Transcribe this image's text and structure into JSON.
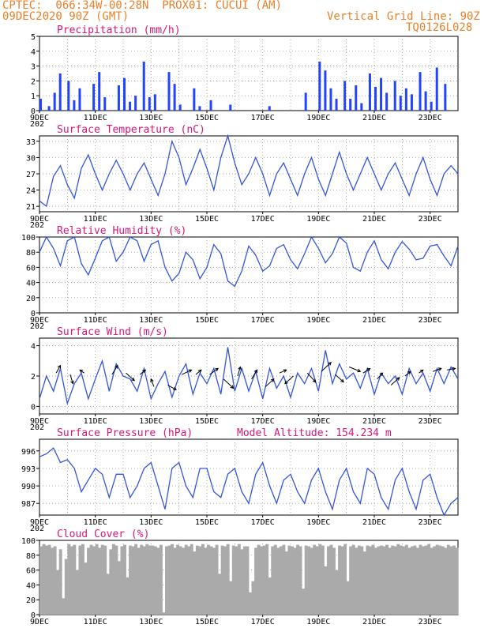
{
  "header": {
    "line1": "CPTEC:  066:34W-00:28N  PROX01: CUCUI (AM)",
    "line2_left": "09DEC2020 90Z (GMT)",
    "line2_right": "Vertical Grid Line: 90Z",
    "line3_right": "TQ0126L028"
  },
  "colors": {
    "line": "#3355dd",
    "bar": "#2244ff",
    "cloud": "#aaaaaa",
    "title": "#d6177a",
    "header": "#e8812a"
  },
  "x_ticks": [
    "9DEC",
    "11DEC",
    "13DEC",
    "15DEC",
    "17DEC",
    "19DEC",
    "21DEC",
    "23DEC"
  ],
  "year_fragment": "202",
  "chart_data": [
    {
      "type": "bar",
      "title": "Precipitation (mm/h)",
      "ylim": [
        0,
        5
      ],
      "yticks": [
        "0",
        "1",
        "2",
        "3",
        "4",
        "5"
      ],
      "x": [
        0.0,
        0.3,
        0.5,
        0.7,
        1.0,
        1.2,
        1.4,
        1.6,
        1.9,
        2.1,
        2.3,
        2.5,
        2.8,
        3.0,
        3.2,
        3.4,
        3.7,
        3.9,
        4.1,
        4.3,
        4.6,
        4.8,
        5.0,
        5.2,
        5.5,
        5.7,
        5.9,
        6.1,
        6.4,
        6.6,
        6.8,
        7.0,
        7.3,
        7.5,
        7.7,
        7.9,
        8.2,
        8.4,
        8.6,
        8.8,
        9.1,
        9.3,
        9.5,
        9.7,
        10.0,
        10.2,
        10.4,
        10.6,
        10.9,
        11.1,
        11.3,
        11.5,
        11.8,
        12.0,
        12.2,
        12.4,
        12.7,
        12.9,
        13.1,
        13.3,
        13.6,
        13.8,
        14.0,
        14.2,
        14.5
      ],
      "values": [
        0.8,
        0.3,
        1.2,
        2.5,
        2.0,
        0.7,
        1.5,
        0.0,
        1.8,
        2.6,
        0.9,
        0.0,
        1.7,
        2.2,
        0.6,
        1.0,
        3.3,
        0.9,
        1.1,
        0.0,
        2.6,
        1.8,
        0.4,
        0.0,
        1.5,
        0.3,
        0.0,
        0.7,
        0.0,
        0.0,
        0.4,
        0.0,
        0.0,
        0.0,
        0.0,
        0.0,
        0.3,
        0.0,
        0.0,
        0.0,
        0.0,
        0.0,
        1.2,
        0.0,
        3.3,
        2.7,
        1.5,
        0.8,
        2.0,
        0.8,
        1.7,
        0.5,
        2.5,
        1.6,
        2.2,
        1.2,
        2.0,
        1.0,
        1.5,
        1.1,
        2.6,
        1.3,
        0.6,
        2.9,
        1.8
      ]
    },
    {
      "type": "line",
      "title": "Surface Temperature (nC)",
      "ylim": [
        20,
        34
      ],
      "yticks": [
        "21",
        "24",
        "27",
        "30",
        "33"
      ],
      "x": [
        0.0,
        0.25,
        0.5,
        0.75,
        1.0,
        1.25,
        1.5,
        1.75,
        2.0,
        2.25,
        2.5,
        2.75,
        3.0,
        3.25,
        3.5,
        3.75,
        4.0,
        4.25,
        4.5,
        4.75,
        5.0,
        5.25,
        5.5,
        5.75,
        6.0,
        6.25,
        6.5,
        6.75,
        7.0,
        7.25,
        7.5,
        7.75,
        8.0,
        8.25,
        8.5,
        8.75,
        9.0,
        9.25,
        9.5,
        9.75,
        10.0,
        10.25,
        10.5,
        10.75,
        11.0,
        11.25,
        11.5,
        11.75,
        12.0,
        12.25,
        12.5,
        12.75,
        13.0,
        13.25,
        13.5,
        13.75,
        14.0,
        14.25,
        14.5,
        14.75,
        15.0
      ],
      "values": [
        22,
        21,
        26.5,
        28.5,
        25,
        22.5,
        28,
        30.5,
        27,
        24,
        27,
        29.5,
        27,
        24,
        27,
        29,
        26,
        23,
        27,
        33,
        30,
        25,
        28,
        31.5,
        28,
        24,
        30,
        34,
        29,
        25,
        27,
        30,
        27,
        23,
        27,
        29,
        26,
        23,
        27,
        30,
        26,
        23,
        27,
        31,
        27,
        24,
        27,
        30,
        27,
        24,
        27,
        29,
        26,
        23,
        27,
        30,
        26,
        23,
        27,
        28.5,
        27
      ]
    },
    {
      "type": "line",
      "title": "Relative Humidity (%)",
      "ylim": [
        0,
        100
      ],
      "yticks": [
        "0",
        "20",
        "40",
        "60",
        "80",
        "100"
      ],
      "x": [
        0.0,
        0.25,
        0.5,
        0.75,
        1.0,
        1.25,
        1.5,
        1.75,
        2.0,
        2.25,
        2.5,
        2.75,
        3.0,
        3.25,
        3.5,
        3.75,
        4.0,
        4.25,
        4.5,
        4.75,
        5.0,
        5.25,
        5.5,
        5.75,
        6.0,
        6.25,
        6.5,
        6.75,
        7.0,
        7.25,
        7.5,
        7.75,
        8.0,
        8.25,
        8.5,
        8.75,
        9.0,
        9.25,
        9.5,
        9.75,
        10.0,
        10.25,
        10.5,
        10.75,
        11.0,
        11.25,
        11.5,
        11.75,
        12.0,
        12.25,
        12.5,
        12.75,
        13.0,
        13.25,
        13.5,
        13.75,
        14.0,
        14.25,
        14.5,
        14.75,
        15.0
      ],
      "values": [
        80,
        100,
        85,
        62,
        95,
        100,
        65,
        50,
        72,
        95,
        100,
        68,
        80,
        100,
        95,
        68,
        90,
        95,
        60,
        42,
        52,
        80,
        70,
        45,
        60,
        90,
        78,
        42,
        35,
        55,
        88,
        76,
        55,
        62,
        85,
        90,
        70,
        58,
        78,
        100,
        85,
        66,
        78,
        100,
        92,
        60,
        55,
        80,
        95,
        70,
        58,
        80,
        94,
        84,
        70,
        72,
        88,
        90,
        75,
        62,
        88
      ]
    },
    {
      "type": "line",
      "title": "Surface Wind (m/s)",
      "ylim": [
        -0.5,
        4.5
      ],
      "yticks": [
        "0",
        "2",
        "4"
      ],
      "x": [
        0.0,
        0.25,
        0.5,
        0.75,
        1.0,
        1.25,
        1.5,
        1.75,
        2.0,
        2.25,
        2.5,
        2.75,
        3.0,
        3.25,
        3.5,
        3.75,
        4.0,
        4.25,
        4.5,
        4.75,
        5.0,
        5.25,
        5.5,
        5.75,
        6.0,
        6.25,
        6.5,
        6.75,
        7.0,
        7.25,
        7.5,
        7.75,
        8.0,
        8.25,
        8.5,
        8.75,
        9.0,
        9.25,
        9.5,
        9.75,
        10.0,
        10.25,
        10.5,
        10.75,
        11.0,
        11.25,
        11.5,
        11.75,
        12.0,
        12.25,
        12.5,
        12.75,
        13.0,
        13.25,
        13.5,
        13.75,
        14.0,
        14.25,
        14.5,
        14.75,
        15.0
      ],
      "values": [
        0.5,
        2.0,
        1.0,
        2.5,
        0.2,
        1.5,
        2.2,
        0.5,
        1.8,
        3.0,
        1.0,
        2.8,
        2.0,
        1.8,
        1.0,
        2.5,
        0.5,
        1.5,
        2.3,
        0.6,
        2.0,
        2.8,
        0.8,
        2.2,
        1.5,
        2.5,
        0.8,
        3.9,
        1.0,
        2.5,
        1.0,
        2.3,
        0.5,
        2.5,
        1.2,
        2.0,
        0.6,
        2.2,
        1.5,
        2.5,
        1.0,
        3.7,
        1.5,
        2.8,
        1.8,
        2.2,
        1.2,
        2.5,
        0.8,
        2.2,
        1.5,
        2.0,
        0.8,
        2.5,
        1.5,
        2.2,
        1.0,
        2.5,
        1.5,
        2.6,
        1.8
      ]
    },
    {
      "type": "line",
      "title": "Surface Pressure (hPa)",
      "annotation": "Model Altitude: 154.234 m",
      "ylim": [
        985,
        998
      ],
      "yticks": [
        "987",
        "990",
        "993",
        "996"
      ],
      "x": [
        0.0,
        0.25,
        0.5,
        0.75,
        1.0,
        1.25,
        1.5,
        1.75,
        2.0,
        2.25,
        2.5,
        2.75,
        3.0,
        3.25,
        3.5,
        3.75,
        4.0,
        4.25,
        4.5,
        4.75,
        5.0,
        5.25,
        5.5,
        5.75,
        6.0,
        6.25,
        6.5,
        6.75,
        7.0,
        7.25,
        7.5,
        7.75,
        8.0,
        8.25,
        8.5,
        8.75,
        9.0,
        9.25,
        9.5,
        9.75,
        10.0,
        10.25,
        10.5,
        10.75,
        11.0,
        11.25,
        11.5,
        11.75,
        12.0,
        12.25,
        12.5,
        12.75,
        13.0,
        13.25,
        13.5,
        13.75,
        14.0,
        14.25,
        14.5,
        14.75,
        15.0
      ],
      "values": [
        995,
        995.5,
        996.5,
        994,
        994.5,
        993,
        989,
        991,
        993,
        992,
        988,
        992,
        992,
        988,
        990,
        993,
        994,
        990,
        986,
        993,
        994,
        990,
        988,
        993,
        993,
        989,
        988,
        992,
        993,
        989,
        987,
        992,
        994,
        990,
        987,
        991,
        992,
        989,
        987,
        991,
        993,
        989,
        986,
        991,
        993,
        989,
        987,
        993,
        992,
        988,
        986,
        991,
        993,
        989,
        986,
        991,
        992,
        988,
        985,
        987,
        988
      ]
    },
    {
      "type": "bar",
      "title": "Cloud Cover (%)",
      "ylim": [
        0,
        100
      ],
      "yticks": [
        "0",
        "20",
        "40",
        "60",
        "80",
        "100"
      ],
      "x": [
        0.0,
        0.1,
        0.2,
        0.3,
        0.4,
        0.5,
        0.6,
        0.7,
        0.8,
        0.9,
        1.0,
        1.1,
        1.2,
        1.3,
        1.4,
        1.5,
        1.6,
        1.7,
        1.8,
        1.9,
        2.0,
        2.1,
        2.2,
        2.3,
        2.4,
        2.5,
        2.6,
        2.7,
        2.8,
        2.9,
        3.0,
        3.1,
        3.2,
        3.3,
        3.4,
        3.5,
        3.6,
        3.7,
        3.8,
        3.9,
        4.0,
        4.1,
        4.2,
        4.3,
        4.4,
        4.5,
        4.6,
        4.7,
        4.8,
        4.9,
        5.0,
        5.1,
        5.2,
        5.3,
        5.4,
        5.5,
        5.6,
        5.7,
        5.8,
        5.9,
        6.0,
        6.1,
        6.2,
        6.3,
        6.4,
        6.5,
        6.6,
        6.7,
        6.8,
        6.9,
        7.0,
        7.1,
        7.2,
        7.3,
        7.4,
        7.5,
        7.6,
        7.7,
        7.8,
        7.9,
        8.0,
        8.1,
        8.2,
        8.3,
        8.4,
        8.5,
        8.6,
        8.7,
        8.8,
        8.9,
        9.0,
        9.1,
        9.2,
        9.3,
        9.4,
        9.5,
        9.6,
        9.7,
        9.8,
        9.9,
        10.0,
        10.1,
        10.2,
        10.3,
        10.4,
        10.5,
        10.6,
        10.7,
        10.8,
        10.9,
        11.0,
        11.1,
        11.2,
        11.3,
        11.4,
        11.5,
        11.6,
        11.7,
        11.8,
        11.9,
        12.0,
        12.1,
        12.2,
        12.3,
        12.4,
        12.5,
        12.6,
        12.7,
        12.8,
        12.9,
        13.0,
        13.1,
        13.2,
        13.3,
        13.4,
        13.5,
        13.6,
        13.7,
        13.8,
        13.9,
        14.0,
        14.1,
        14.2,
        14.3,
        14.4,
        14.5,
        14.6,
        14.7,
        14.8,
        14.9
      ],
      "values": [
        92,
        95,
        93,
        94,
        90,
        92,
        60,
        88,
        22,
        75,
        95,
        92,
        94,
        60,
        93,
        95,
        70,
        90,
        94,
        92,
        95,
        90,
        94,
        93,
        55,
        88,
        95,
        93,
        72,
        92,
        94,
        50,
        93,
        92,
        95,
        90,
        94,
        92,
        95,
        93,
        93,
        92,
        90,
        94,
        3,
        92,
        93,
        95,
        90,
        94,
        92,
        90,
        94,
        92,
        95,
        85,
        93,
        92,
        95,
        90,
        94,
        92,
        90,
        94,
        55,
        93,
        92,
        95,
        45,
        93,
        92,
        95,
        88,
        92,
        92,
        30,
        45,
        90,
        94,
        92,
        93,
        95,
        50,
        92,
        94,
        90,
        92,
        94,
        85,
        93,
        92,
        90,
        94,
        92,
        35,
        93,
        92,
        90,
        94,
        92,
        95,
        93,
        65,
        92,
        94,
        90,
        60,
        93,
        92,
        95,
        45,
        92,
        94,
        90,
        93,
        92,
        85,
        93,
        92,
        94,
        90,
        92,
        93,
        92,
        94,
        90,
        93,
        92,
        95,
        93,
        92,
        94,
        90,
        92,
        93,
        90,
        94,
        92,
        93,
        95,
        90,
        92,
        94,
        93,
        92,
        90,
        94,
        92,
        93,
        90
      ]
    }
  ],
  "wind_arrows": [
    {
      "x": 0.6,
      "y": 2.2,
      "dx": 0.15,
      "dy": 0.5
    },
    {
      "x": 1.1,
      "y": 2.1,
      "dx": 0.1,
      "dy": -0.6
    },
    {
      "x": 1.6,
      "y": 2.2,
      "dx": -0.15,
      "dy": 0.2
    },
    {
      "x": 2.6,
      "y": 2.1,
      "dx": 0.2,
      "dy": 0.6
    },
    {
      "x": 3.1,
      "y": 2.2,
      "dx": 0.3,
      "dy": -0.5
    },
    {
      "x": 3.6,
      "y": 2.1,
      "dx": 0.2,
      "dy": 0.3
    },
    {
      "x": 4.1,
      "y": 1.3,
      "dx": -0.1,
      "dy": 0.5
    },
    {
      "x": 4.6,
      "y": 1.4,
      "dx": 0.3,
      "dy": -0.3
    },
    {
      "x": 5.1,
      "y": 2.1,
      "dx": 0.35,
      "dy": 0.3
    },
    {
      "x": 5.6,
      "y": 2.1,
      "dx": 0.2,
      "dy": 0.3
    },
    {
      "x": 6.1,
      "y": 2.1,
      "dx": 0.3,
      "dy": 0.4
    },
    {
      "x": 6.6,
      "y": 1.8,
      "dx": 0.35,
      "dy": -0.6
    },
    {
      "x": 7.1,
      "y": 2.0,
      "dx": 0.1,
      "dy": 0.6
    },
    {
      "x": 7.6,
      "y": 1.8,
      "dx": 0.2,
      "dy": 0.6
    },
    {
      "x": 8.1,
      "y": 1.3,
      "dx": 0.3,
      "dy": 0.5
    },
    {
      "x": 8.6,
      "y": 2.2,
      "dx": 0.25,
      "dy": 0.2
    },
    {
      "x": 9.1,
      "y": 2.0,
      "dx": -0.3,
      "dy": -0.5
    },
    {
      "x": 9.6,
      "y": 2.2,
      "dx": 0.3,
      "dy": -0.6
    },
    {
      "x": 10.1,
      "y": 2.3,
      "dx": 0.35,
      "dy": 0.6
    },
    {
      "x": 10.6,
      "y": 2.1,
      "dx": 0.3,
      "dy": -0.5
    },
    {
      "x": 11.1,
      "y": 2.6,
      "dx": 0.4,
      "dy": -0.3
    },
    {
      "x": 11.6,
      "y": 2.2,
      "dx": 0.25,
      "dy": 0.3
    },
    {
      "x": 12.1,
      "y": 1.8,
      "dx": 0.2,
      "dy": 0.4
    },
    {
      "x": 12.6,
      "y": 1.4,
      "dx": 0.3,
      "dy": 0.5
    },
    {
      "x": 13.1,
      "y": 2.0,
      "dx": 0.2,
      "dy": 0.3
    },
    {
      "x": 13.6,
      "y": 2.2,
      "dx": 0.15,
      "dy": 0.2
    },
    {
      "x": 14.1,
      "y": 2.3,
      "dx": 0.3,
      "dy": 0.2
    },
    {
      "x": 14.6,
      "y": 2.4,
      "dx": 0.3,
      "dy": 0.1
    }
  ]
}
